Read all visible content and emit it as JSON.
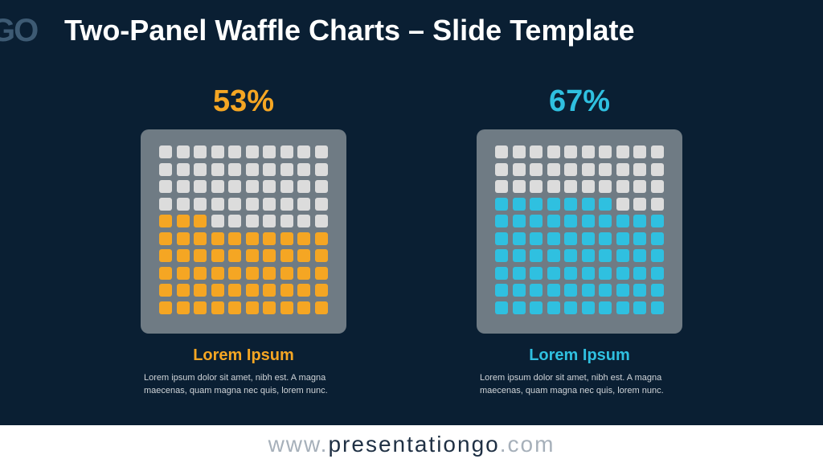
{
  "header": {
    "logo_text": "GO",
    "title": "Two-Panel Waffle Charts – Slide Template"
  },
  "colors": {
    "background": "#0a1f33",
    "panel_bg": "#6f7b84",
    "empty_cell": "#dcdcdc",
    "orange": "#f5a623",
    "blue": "#2fc0e0"
  },
  "panels": [
    {
      "percent_label": "53%",
      "heading": "Lorem Ipsum",
      "description": "Lorem ipsum dolor sit amet, nibh est. A magna maecenas, quam magna nec quis, lorem nunc.",
      "color": "#f5a623"
    },
    {
      "percent_label": "67%",
      "heading": "Lorem Ipsum",
      "description": "Lorem ipsum dolor sit amet, nibh est. A magna maecenas, quam magna nec quis, lorem nunc.",
      "color": "#2fc0e0"
    }
  ],
  "chart_data": [
    {
      "type": "waffle",
      "grid_rows": 10,
      "grid_cols": 10,
      "filled": 53,
      "total": 100,
      "fill_from": "bottom",
      "label": "53%",
      "title": "Lorem Ipsum"
    },
    {
      "type": "waffle",
      "grid_rows": 10,
      "grid_cols": 10,
      "filled": 67,
      "total": 100,
      "fill_from": "bottom",
      "label": "67%",
      "title": "Lorem Ipsum"
    }
  ],
  "footer": {
    "prefix": "www.",
    "brand": "presentationgo",
    "suffix": ".com"
  }
}
